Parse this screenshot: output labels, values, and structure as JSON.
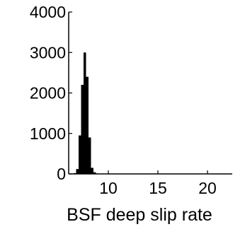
{
  "chart_data": {
    "type": "bar",
    "title": "",
    "xlabel": "BSF deep slip rate",
    "ylabel": "",
    "xlim": [
      6,
      22.5
    ],
    "ylim": [
      0,
      4000
    ],
    "x_ticks": [
      10,
      15,
      20
    ],
    "y_ticks": [
      0,
      1000,
      2000,
      3000,
      4000
    ],
    "grid": false,
    "legend": "none",
    "bar_color": "#000000",
    "bin_width": 0.25,
    "bins": [
      {
        "x": 6.5,
        "value": 20
      },
      {
        "x": 6.75,
        "value": 120
      },
      {
        "x": 7.0,
        "value": 950
      },
      {
        "x": 7.25,
        "value": 2200
      },
      {
        "x": 7.5,
        "value": 3000
      },
      {
        "x": 7.75,
        "value": 2400
      },
      {
        "x": 8.0,
        "value": 900
      },
      {
        "x": 8.25,
        "value": 150
      },
      {
        "x": 8.5,
        "value": 40
      },
      {
        "x": 8.75,
        "value": 10
      }
    ]
  }
}
